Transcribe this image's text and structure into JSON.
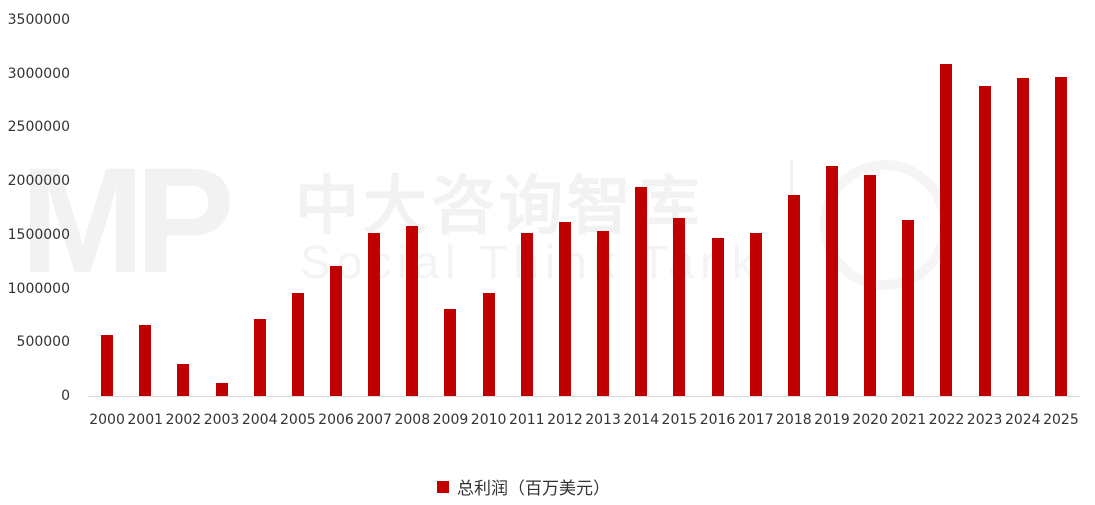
{
  "watermark": {
    "logo_text": "MP",
    "title_cn": "中大咨询智库",
    "title_en": "Social Think Tank"
  },
  "legend": {
    "label": "总利润（百万美元）",
    "color": "#c00000"
  },
  "y_axis": {
    "ticks": [
      "0",
      "500000",
      "1000000",
      "1500000",
      "2000000",
      "2500000",
      "3000000",
      "3500000"
    ]
  },
  "chart_data": {
    "type": "bar",
    "title": "",
    "xlabel": "",
    "ylabel": "",
    "ylim": [
      0,
      3500000
    ],
    "grid": false,
    "legend_position": "bottom",
    "bar_color": "#c00000",
    "categories": [
      "2000",
      "2001",
      "2002",
      "2003",
      "2004",
      "2005",
      "2006",
      "2007",
      "2008",
      "2009",
      "2010",
      "2011",
      "2012",
      "2013",
      "2014",
      "2015",
      "2016",
      "2017",
      "2018",
      "2019",
      "2020",
      "2021",
      "2022",
      "2023",
      "2024",
      "2025"
    ],
    "series": [
      {
        "name": "总利润（百万美元）",
        "values": [
          568000,
          661000,
          298000,
          121000,
          717000,
          959000,
          1210000,
          1520000,
          1580000,
          810000,
          959000,
          1520000,
          1620000,
          1540000,
          1950000,
          1660000,
          1470000,
          1520000,
          1870000,
          2140000,
          2060000,
          1640000,
          3090000,
          2890000,
          2960000,
          2970000
        ]
      }
    ]
  }
}
